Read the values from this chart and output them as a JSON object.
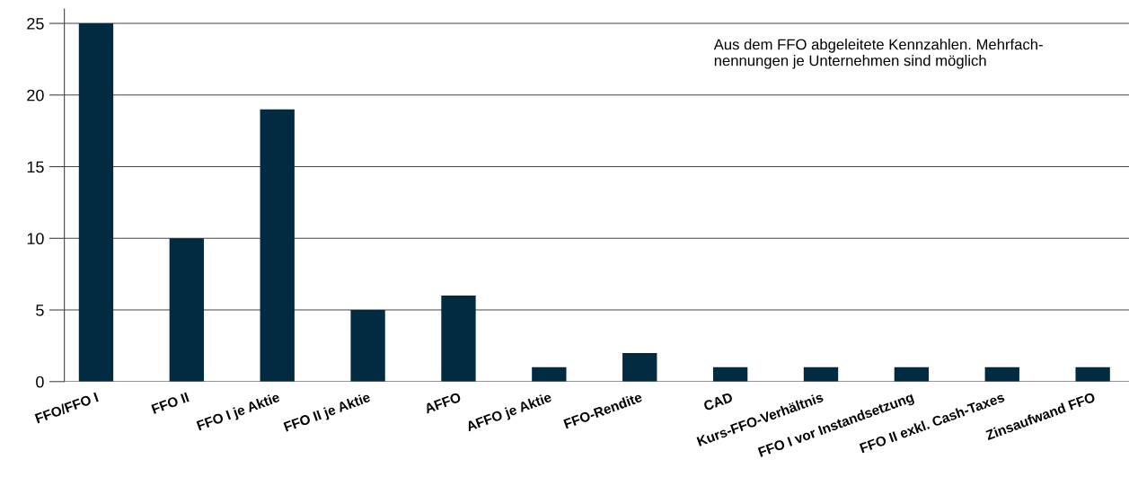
{
  "chart_data": {
    "type": "bar",
    "categories": [
      "FFO/FFO I",
      "FFO II",
      "FFO I je Aktie",
      "FFO II je Aktie",
      "AFFO",
      "AFFO je Aktie",
      "FFO-Rendite",
      "CAD",
      "Kurs-FFO-Verhältnis",
      "FFO I vor Instandsetzung",
      "FFO II exkl. Cash-Taxes",
      "Zinsaufwand FFO"
    ],
    "values": [
      25,
      10,
      19,
      5,
      6,
      1,
      2,
      1,
      1,
      1,
      1,
      1
    ],
    "color": "#022a40",
    "ylim": [
      0,
      26
    ],
    "yticks": [
      0,
      5,
      10,
      15,
      20,
      25
    ],
    "grid": "y",
    "annotations": [
      "Aus dem FFO abgeleitete Kennzahlen. Mehrfach-\nnennungen je Unternehmen sind möglich"
    ]
  }
}
